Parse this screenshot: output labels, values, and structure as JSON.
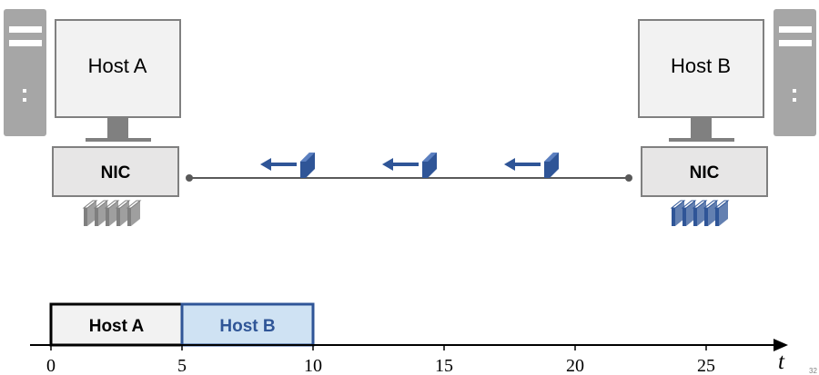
{
  "host_a": {
    "label": "Host A",
    "nic_label": "NIC",
    "queued_packets": 5
  },
  "host_b": {
    "label": "Host B",
    "nic_label": "NIC",
    "queued_packets": 5
  },
  "link": {
    "packets_in_flight": 3,
    "direction": "B to A"
  },
  "timeline": {
    "segments": [
      {
        "label": "Host A",
        "start": 0,
        "end": 5,
        "fill": "#f2f2f2",
        "stroke": "#000000",
        "text_color": "#000000"
      },
      {
        "label": "Host B",
        "start": 5,
        "end": 10,
        "fill": "#cfe2f3",
        "stroke": "#2f5597",
        "text_color": "#2f5597"
      }
    ],
    "ticks": [
      "0",
      "5",
      "10",
      "15",
      "20",
      "25"
    ],
    "axis_label": "t",
    "range": [
      0,
      28
    ]
  },
  "page_number": "32",
  "colors": {
    "packet_blue": "#2f5597",
    "packet_gray": "#7f7f7f",
    "tower_gray": "#a6a6a6",
    "box_fill": "#e7e6e6"
  }
}
